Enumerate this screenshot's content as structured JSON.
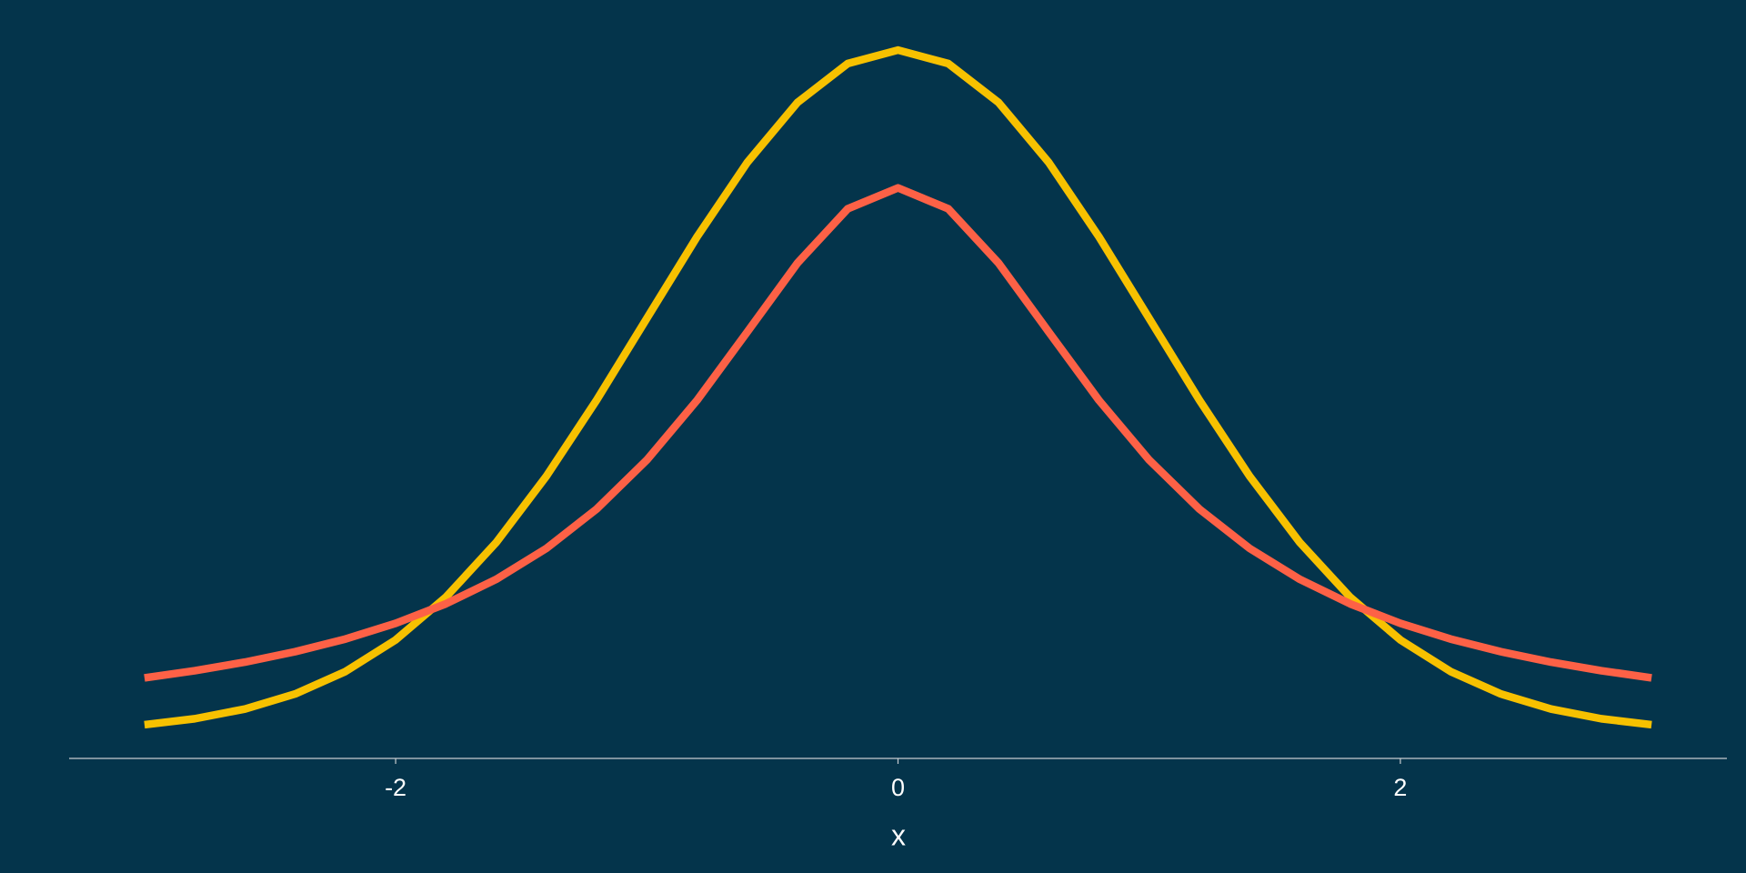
{
  "chart_data": {
    "type": "line",
    "x_label": "x",
    "x": [
      -3,
      -2.8,
      -2.6,
      -2.4,
      -2.2,
      -2,
      -1.8,
      -1.6,
      -1.4,
      -1.2,
      -1,
      -0.8,
      -0.6,
      -0.4,
      -0.2,
      0,
      0.2,
      0.4,
      0.6,
      0.8,
      1,
      1.2,
      1.4,
      1.6,
      1.8,
      2,
      2.2,
      2.4,
      2.6,
      2.8,
      3
    ],
    "series": [
      {
        "color": "#f7c100",
        "values": [
          0.0044,
          0.0079,
          0.0136,
          0.0224,
          0.0355,
          0.054,
          0.079,
          0.1109,
          0.1497,
          0.1942,
          0.242,
          0.2897,
          0.3332,
          0.3683,
          0.391,
          0.3989,
          0.391,
          0.3683,
          0.3332,
          0.2897,
          0.242,
          0.1942,
          0.1497,
          0.1109,
          0.079,
          0.054,
          0.0355,
          0.0224,
          0.0136,
          0.0079,
          0.0044
        ]
      },
      {
        "color": "#fd6146",
        "values": [
          0.0318,
          0.036,
          0.041,
          0.0471,
          0.0545,
          0.0637,
          0.0751,
          0.0894,
          0.1075,
          0.1305,
          0.1592,
          0.1941,
          0.2341,
          0.2744,
          0.3061,
          0.3183,
          0.3061,
          0.2744,
          0.2341,
          0.1941,
          0.1592,
          0.1305,
          0.1075,
          0.0894,
          0.0751,
          0.0637,
          0.0545,
          0.0471,
          0.041,
          0.036,
          0.0318
        ]
      }
    ],
    "xlim": [
      -3.3,
      3.3
    ],
    "xticks": [
      -2,
      0,
      2
    ],
    "ylim": [
      -0.0153,
      0.4186
    ]
  }
}
